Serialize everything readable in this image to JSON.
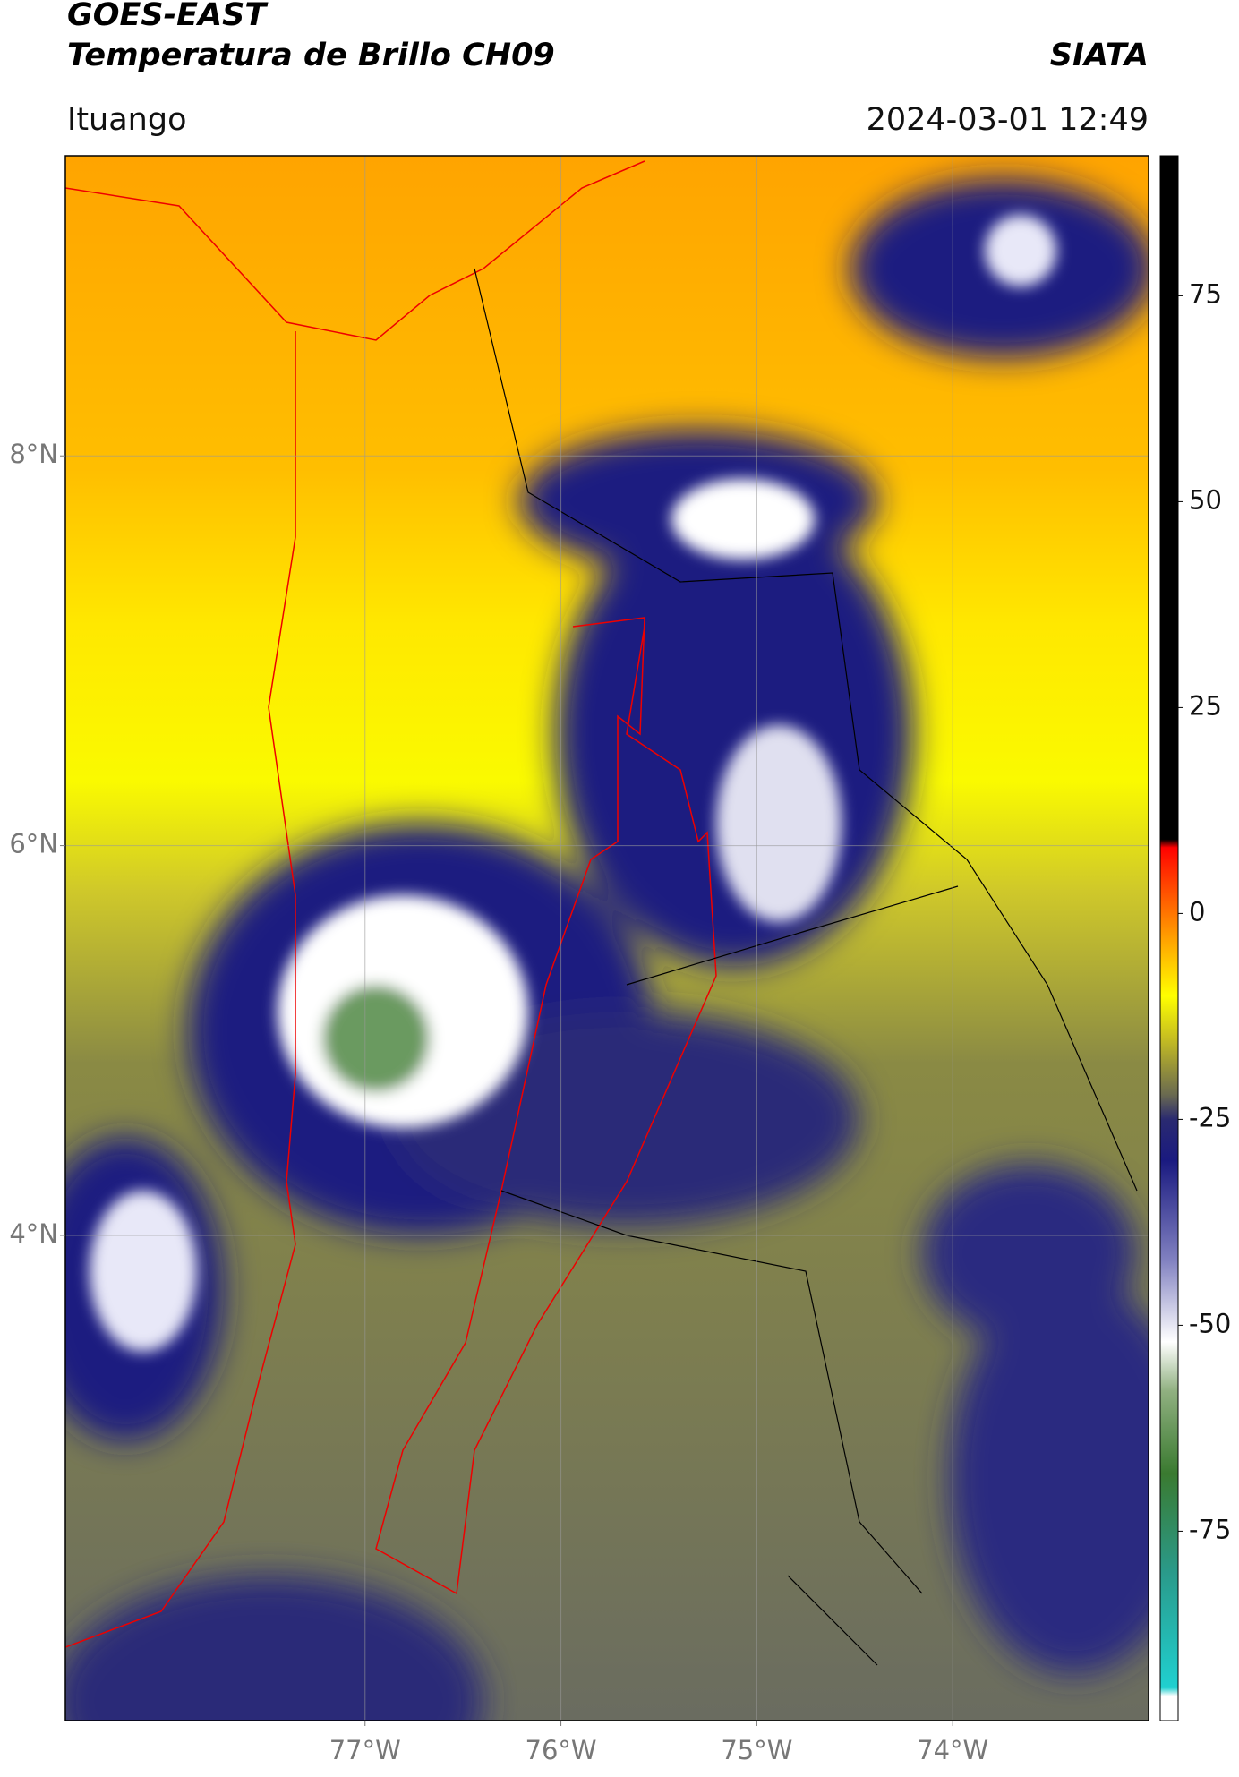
{
  "header": {
    "title": "GOES-EAST",
    "subtitle": "Temperatura de Brillo CH09",
    "agency": "SIATA",
    "location": "Ituango",
    "datetime": "2024-03-01 12:49"
  },
  "map": {
    "xlim": [
      -78.53,
      -73.0
    ],
    "ylim": [
      1.51,
      9.54
    ],
    "xticks": [
      {
        "value": -77,
        "label": "77°W"
      },
      {
        "value": -76,
        "label": "76°W"
      },
      {
        "value": -75,
        "label": "75°W"
      },
      {
        "value": -74,
        "label": "74°W"
      }
    ],
    "yticks": [
      {
        "value": 4,
        "label": "4°N"
      },
      {
        "value": 6,
        "label": "6°N"
      },
      {
        "value": 8,
        "label": "8°N"
      }
    ],
    "grid": true
  },
  "colorbar": {
    "lim": [
      -98,
      92
    ],
    "ticks": [
      -75,
      -50,
      -25,
      0,
      25,
      50,
      75
    ],
    "colormap": [
      [
        -98,
        "#ffffff"
      ],
      [
        -95,
        "#ffffff"
      ],
      [
        -94,
        "#20d0d0"
      ],
      [
        -80,
        "#2a9a8a"
      ],
      [
        -68,
        "#3a7a30"
      ],
      [
        -58,
        "#90b080"
      ],
      [
        -52,
        "#ffffff"
      ],
      [
        -42,
        "#8080c0"
      ],
      [
        -30,
        "#1a1a80"
      ],
      [
        -25,
        "#2a2a70"
      ],
      [
        -22,
        "#6a6a50"
      ],
      [
        -15,
        "#c8c020"
      ],
      [
        -10,
        "#ffff00"
      ],
      [
        -3,
        "#ffa000"
      ],
      [
        6,
        "#ff2000"
      ],
      [
        8,
        "#ff0000"
      ],
      [
        9,
        "#000000"
      ],
      [
        92,
        "#000000"
      ]
    ]
  }
}
